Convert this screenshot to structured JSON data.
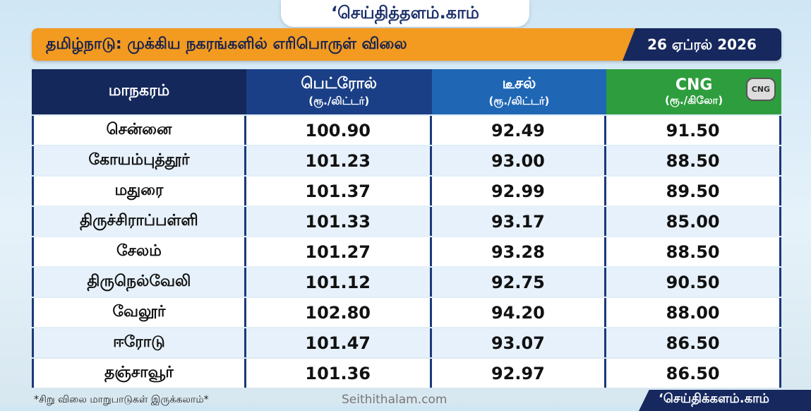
{
  "header": {
    "logo": "‘செய்தித்தளம்.காம்",
    "title": "தமிழ்நாடு: முக்கிய நகரங்களில் எரிபொருள் விலை",
    "date": "26 ஏப்ரல் 2026"
  },
  "table": {
    "columns": [
      {
        "name": "மாநகரம்"
      },
      {
        "name": "பெட்ரோல்",
        "unit": "(ரூ./லிட்டர்)"
      },
      {
        "name": "டீசல்",
        "unit": "(ரூ./லிட்டர்)"
      },
      {
        "name": "CNG",
        "unit": "(ரூ./கிலோ)",
        "icon": "CNG"
      }
    ],
    "rows": [
      [
        "சென்னை",
        "100.90",
        "92.49",
        "91.50"
      ],
      [
        "கோயம்புத்தூர்",
        "101.23",
        "93.00",
        "88.50"
      ],
      [
        "மதுரை",
        "101.37",
        "92.99",
        "89.50"
      ],
      [
        "திருச்சிராப்பள்ளி",
        "101.33",
        "93.17",
        "85.00"
      ],
      [
        "சேலம்",
        "101.27",
        "93.28",
        "88.50"
      ],
      [
        "திருநெல்வேலி",
        "101.12",
        "92.75",
        "90.50"
      ],
      [
        "வேலூர்",
        "102.80",
        "94.20",
        "88.00"
      ],
      [
        "ஈரோடு",
        "101.47",
        "93.07",
        "86.50"
      ],
      [
        "தஞ்சாவூர்",
        "101.36",
        "92.97",
        "86.50"
      ]
    ]
  },
  "footer": {
    "note": "*சிறு விலை மாறுபாடுகள் இருக்கலாம்*",
    "website": "Seithithalam.com",
    "logo": "‘செய்திக்களம்.காம்"
  }
}
